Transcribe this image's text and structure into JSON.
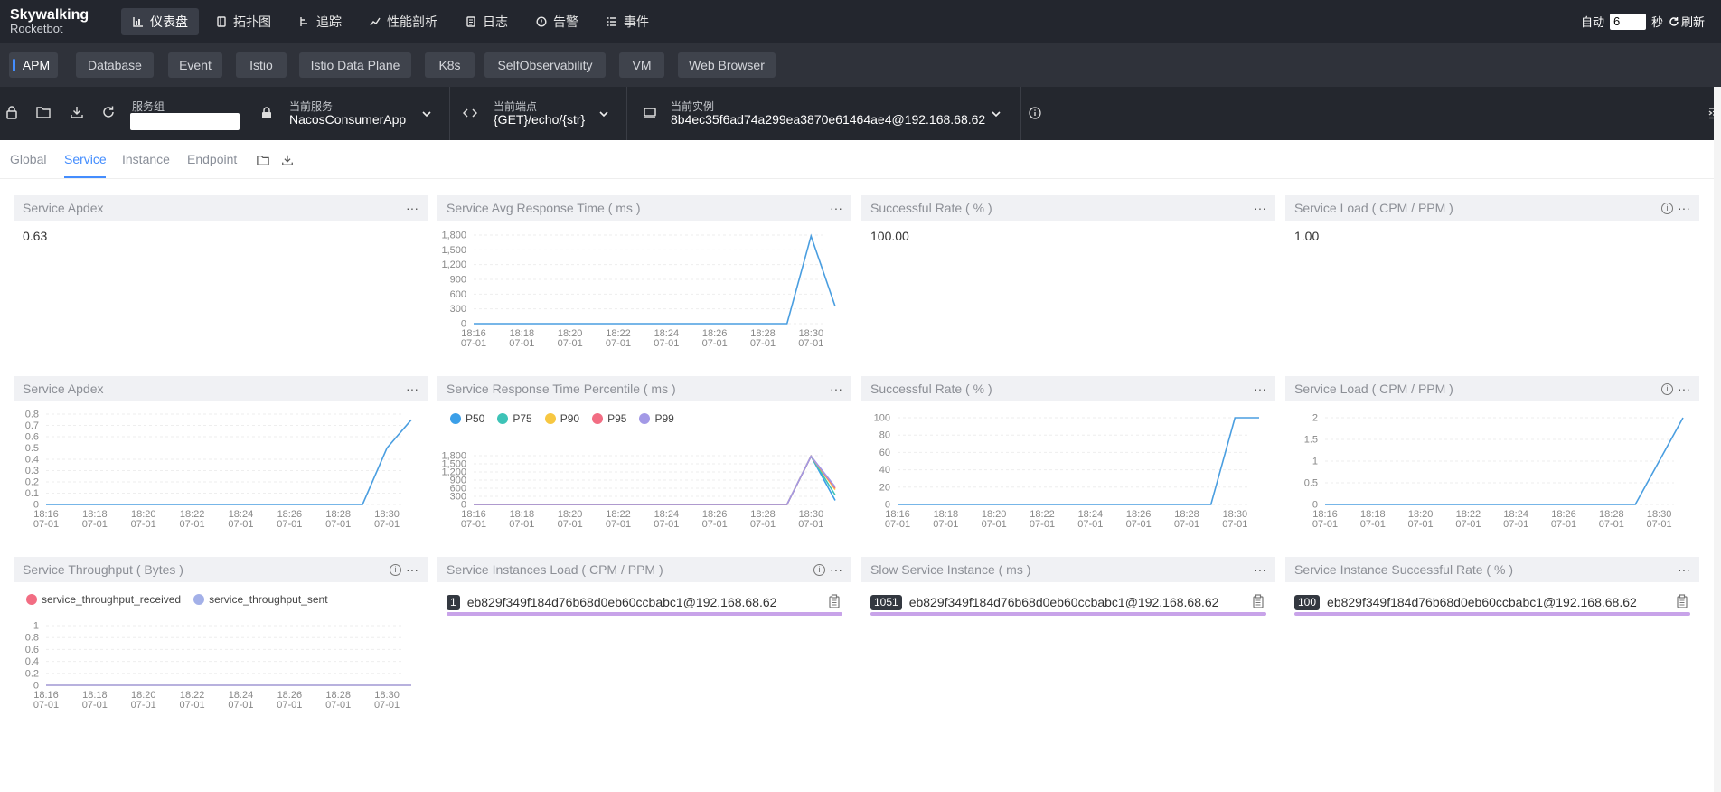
{
  "topbar": {
    "logo_line1": "Skywalking",
    "logo_line2": "Rocketbot",
    "nav": [
      {
        "label": "仪表盘",
        "icon": "dashboard-icon"
      },
      {
        "label": "拓扑图",
        "icon": "topology-icon"
      },
      {
        "label": "追踪",
        "icon": "trace-icon"
      },
      {
        "label": "性能剖析",
        "icon": "profile-icon"
      },
      {
        "label": "日志",
        "icon": "log-icon"
      },
      {
        "label": "告警",
        "icon": "alarm-icon"
      },
      {
        "label": "事件",
        "icon": "event-icon"
      }
    ],
    "auto_label": "自动",
    "interval_value": "6",
    "seconds_label": "秒",
    "refresh_label": "刷新"
  },
  "layer_tabs": [
    "APM",
    "Database",
    "Event",
    "Istio",
    "Istio Data Plane",
    "K8s",
    "SelfObservability",
    "VM",
    "Web Browser"
  ],
  "selectors": {
    "group_label": "服务组",
    "group_value": "",
    "service_label": "当前服务",
    "service_value": "NacosConsumerApp",
    "endpoint_label": "当前端点",
    "endpoint_value": "{GET}/echo/{str}",
    "instance_label": "当前实例",
    "instance_value": "8b4ec35f6ad74a299ea3870e61464ae4@192.168.68.62"
  },
  "subtabs": [
    "Global",
    "Service",
    "Instance",
    "Endpoint"
  ],
  "time_labels": [
    "18:16",
    "18:18",
    "18:20",
    "18:22",
    "18:24",
    "18:26",
    "18:28",
    "18:30"
  ],
  "date_label": "07-01",
  "cards": {
    "apdex_value": {
      "title": "Service Apdex",
      "value": "0.63"
    },
    "avg_resp": {
      "title": "Service Avg Response Time ( ms )"
    },
    "success_value": {
      "title": "Successful Rate ( % )",
      "value": "100.00"
    },
    "load_value": {
      "title": "Service Load ( CPM / PPM )",
      "value": "1.00"
    },
    "apdex_chart": {
      "title": "Service Apdex"
    },
    "percentile": {
      "title": "Service Response Time Percentile ( ms )",
      "legend": [
        "P50",
        "P75",
        "P90",
        "P95",
        "P99"
      ]
    },
    "success_chart": {
      "title": "Successful Rate ( % )"
    },
    "load_chart": {
      "title": "Service Load ( CPM / PPM )"
    },
    "throughput": {
      "title": "Service Throughput ( Bytes )",
      "legend": [
        "service_throughput_received",
        "service_throughput_sent"
      ]
    },
    "inst_load": {
      "title": "Service Instances Load ( CPM / PPM )",
      "badge": "1",
      "item": "eb829f349f184d76b68d0eb60ccbabc1@192.168.68.62"
    },
    "slow_inst": {
      "title": "Slow Service Instance ( ms )",
      "badge": "1051",
      "item": "eb829f349f184d76b68d0eb60ccbabc1@192.168.68.62"
    },
    "inst_success": {
      "title": "Service Instance Successful Rate ( % )",
      "badge": "100",
      "item": "eb829f349f184d76b68d0eb60ccbabc1@192.168.68.62"
    }
  },
  "colors": {
    "p50": "#3b9fe8",
    "p75": "#3dc3b7",
    "p90": "#f7c741",
    "p95": "#f26d83",
    "p99": "#a399e6",
    "line": "#4a9ee0",
    "accent": "#448dfe"
  },
  "chart_data": [
    {
      "type": "line",
      "title": "Service Avg Response Time ( ms )",
      "x": [
        "18:16",
        "18:17",
        "18:18",
        "18:19",
        "18:20",
        "18:21",
        "18:22",
        "18:23",
        "18:24",
        "18:25",
        "18:26",
        "18:27",
        "18:28",
        "18:29",
        "18:30",
        "18:31"
      ],
      "series": [
        {
          "values": [
            0,
            0,
            0,
            0,
            0,
            0,
            0,
            0,
            0,
            0,
            0,
            0,
            0,
            0,
            1780,
            350
          ]
        }
      ],
      "yticks": [
        0,
        300,
        600,
        900,
        1200,
        1500,
        1800
      ],
      "ylim": [
        0,
        1800
      ]
    },
    {
      "type": "line",
      "title": "Service Apdex",
      "x": [
        "18:16",
        "18:17",
        "18:18",
        "18:19",
        "18:20",
        "18:21",
        "18:22",
        "18:23",
        "18:24",
        "18:25",
        "18:26",
        "18:27",
        "18:28",
        "18:29",
        "18:30",
        "18:31"
      ],
      "series": [
        {
          "values": [
            0,
            0,
            0,
            0,
            0,
            0,
            0,
            0,
            0,
            0,
            0,
            0,
            0,
            0,
            0.5,
            0.75
          ]
        }
      ],
      "yticks": [
        0,
        0.1,
        0.2,
        0.3,
        0.4,
        0.5,
        0.6,
        0.7,
        0.8
      ],
      "ylim": [
        0,
        0.8
      ]
    },
    {
      "type": "line",
      "title": "Service Response Time Percentile ( ms )",
      "x": [
        "18:16",
        "18:17",
        "18:18",
        "18:19",
        "18:20",
        "18:21",
        "18:22",
        "18:23",
        "18:24",
        "18:25",
        "18:26",
        "18:27",
        "18:28",
        "18:29",
        "18:30",
        "18:31"
      ],
      "series": [
        {
          "name": "P50",
          "values": [
            0,
            0,
            0,
            0,
            0,
            0,
            0,
            0,
            0,
            0,
            0,
            0,
            0,
            0,
            1780,
            150
          ]
        },
        {
          "name": "P75",
          "values": [
            0,
            0,
            0,
            0,
            0,
            0,
            0,
            0,
            0,
            0,
            0,
            0,
            0,
            0,
            1780,
            350
          ]
        },
        {
          "name": "P90",
          "values": [
            0,
            0,
            0,
            0,
            0,
            0,
            0,
            0,
            0,
            0,
            0,
            0,
            0,
            0,
            1780,
            550
          ]
        },
        {
          "name": "P95",
          "values": [
            0,
            0,
            0,
            0,
            0,
            0,
            0,
            0,
            0,
            0,
            0,
            0,
            0,
            0,
            1780,
            600
          ]
        },
        {
          "name": "P99",
          "values": [
            0,
            0,
            0,
            0,
            0,
            0,
            0,
            0,
            0,
            0,
            0,
            0,
            0,
            0,
            1780,
            650
          ]
        }
      ],
      "yticks": [
        0,
        300,
        600,
        900,
        1200,
        1500,
        1800
      ],
      "ylim": [
        0,
        1800
      ]
    },
    {
      "type": "line",
      "title": "Successful Rate ( % )",
      "x": [
        "18:16",
        "18:17",
        "18:18",
        "18:19",
        "18:20",
        "18:21",
        "18:22",
        "18:23",
        "18:24",
        "18:25",
        "18:26",
        "18:27",
        "18:28",
        "18:29",
        "18:30",
        "18:31"
      ],
      "series": [
        {
          "values": [
            0,
            0,
            0,
            0,
            0,
            0,
            0,
            0,
            0,
            0,
            0,
            0,
            0,
            0,
            100,
            100
          ]
        }
      ],
      "yticks": [
        0,
        20,
        40,
        60,
        80,
        100
      ],
      "ylim": [
        0,
        100
      ]
    },
    {
      "type": "line",
      "title": "Service Load ( CPM / PPM )",
      "x": [
        "18:16",
        "18:17",
        "18:18",
        "18:19",
        "18:20",
        "18:21",
        "18:22",
        "18:23",
        "18:24",
        "18:25",
        "18:26",
        "18:27",
        "18:28",
        "18:29",
        "18:30",
        "18:31"
      ],
      "series": [
        {
          "values": [
            0,
            0,
            0,
            0,
            0,
            0,
            0,
            0,
            0,
            0,
            0,
            0,
            0,
            0,
            1,
            2
          ]
        }
      ],
      "yticks": [
        0,
        0.5,
        1,
        1.5,
        2
      ],
      "ylim": [
        0,
        2
      ]
    },
    {
      "type": "line",
      "title": "Service Throughput ( Bytes )",
      "x": [
        "18:16",
        "18:17",
        "18:18",
        "18:19",
        "18:20",
        "18:21",
        "18:22",
        "18:23",
        "18:24",
        "18:25",
        "18:26",
        "18:27",
        "18:28",
        "18:29",
        "18:30",
        "18:31"
      ],
      "series": [
        {
          "name": "service_throughput_received",
          "values": [
            0,
            0,
            0,
            0,
            0,
            0,
            0,
            0,
            0,
            0,
            0,
            0,
            0,
            0,
            0,
            0
          ]
        },
        {
          "name": "service_throughput_sent",
          "values": [
            0,
            0,
            0,
            0,
            0,
            0,
            0,
            0,
            0,
            0,
            0,
            0,
            0,
            0,
            0,
            0
          ]
        }
      ],
      "yticks": [
        0,
        0.2,
        0.4,
        0.6,
        0.8,
        1
      ],
      "ylim": [
        0,
        1
      ]
    }
  ]
}
